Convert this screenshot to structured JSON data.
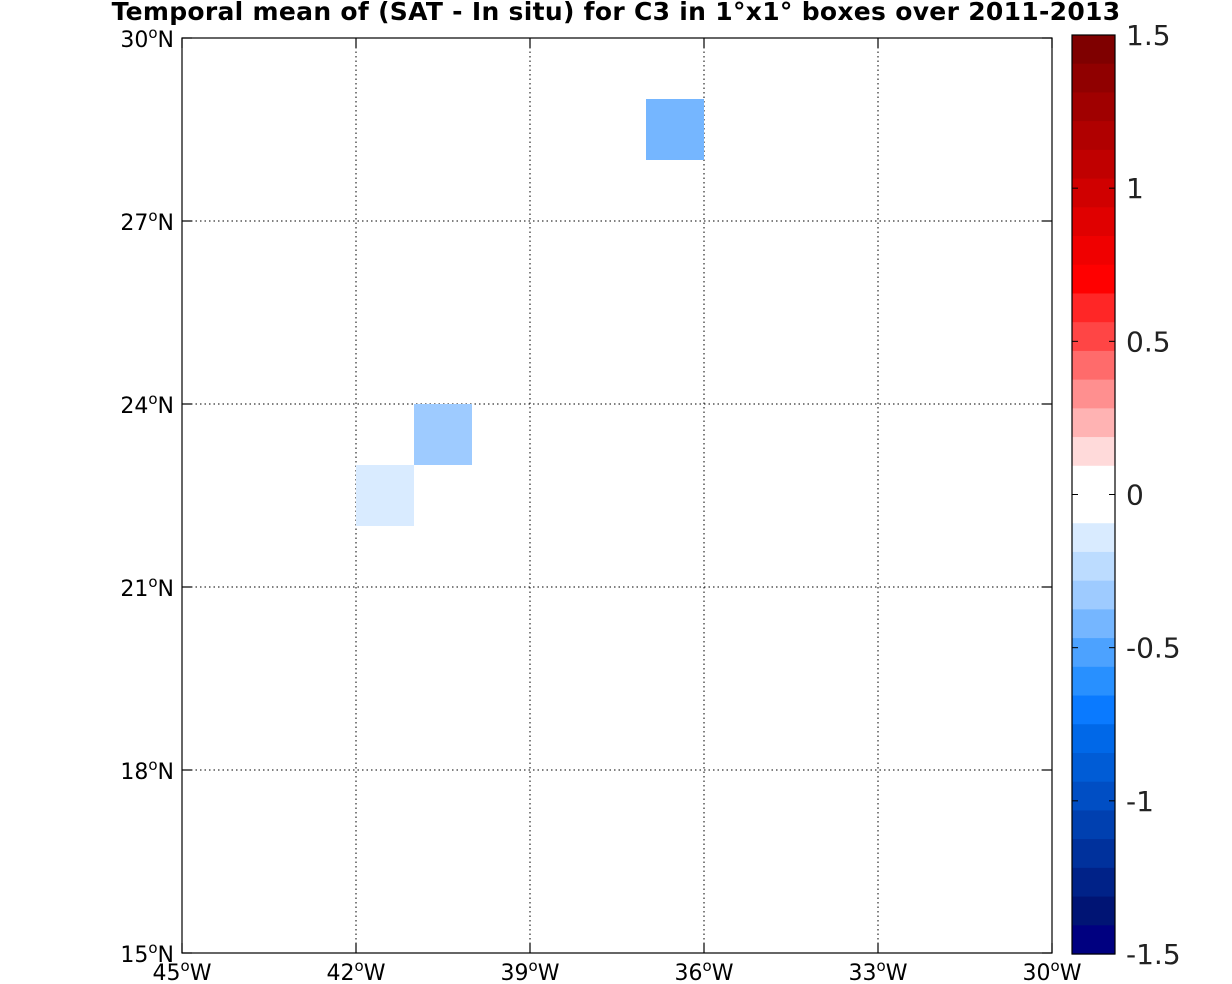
{
  "chart_data": {
    "type": "heatmap",
    "title": "Temporal mean of (SAT - In situ) for C3 in 1°x1° boxes over 2011-2013",
    "x_ticks": [
      {
        "value": -45,
        "deg": "45",
        "hemi": "W"
      },
      {
        "value": -42,
        "deg": "42",
        "hemi": "W"
      },
      {
        "value": -39,
        "deg": "39",
        "hemi": "W"
      },
      {
        "value": -36,
        "deg": "36",
        "hemi": "W"
      },
      {
        "value": -33,
        "deg": "33",
        "hemi": "W"
      },
      {
        "value": -30,
        "deg": "30",
        "hemi": "W"
      }
    ],
    "y_ticks": [
      {
        "value": 15,
        "deg": "15",
        "hemi": "N"
      },
      {
        "value": 18,
        "deg": "18",
        "hemi": "N"
      },
      {
        "value": 21,
        "deg": "21",
        "hemi": "N"
      },
      {
        "value": 24,
        "deg": "24",
        "hemi": "N"
      },
      {
        "value": 27,
        "deg": "27",
        "hemi": "N"
      },
      {
        "value": 30,
        "deg": "30",
        "hemi": "N"
      }
    ],
    "xlim": [
      -45,
      -30
    ],
    "ylim": [
      15,
      30
    ],
    "grid": true,
    "cells": [
      {
        "lon_min": -37,
        "lon_max": -36,
        "lat_min": 28,
        "lat_max": 29,
        "value": -0.45
      },
      {
        "lon_min": -41,
        "lon_max": -40,
        "lat_min": 23,
        "lat_max": 24,
        "value": -0.35
      },
      {
        "lon_min": -42,
        "lon_max": -41,
        "lat_min": 22,
        "lat_max": 23,
        "value": -0.1
      }
    ],
    "colorbar": {
      "range": [
        -1.5,
        1.5
      ],
      "ticks": [
        {
          "value": 1.5,
          "label": "1.5"
        },
        {
          "value": 1,
          "label": "1"
        },
        {
          "value": 0.5,
          "label": "0.5"
        },
        {
          "value": 0,
          "label": "0"
        },
        {
          "value": -0.5,
          "label": "-0.5"
        },
        {
          "value": -1,
          "label": "-1"
        },
        {
          "value": -1.5,
          "label": "-1.5"
        }
      ],
      "colors": [
        "#7f0000",
        "#900000",
        "#a00000",
        "#b00000",
        "#c00000",
        "#d00000",
        "#e00000",
        "#f00000",
        "#ff0000",
        "#ff2626",
        "#ff4545",
        "#ff6b6b",
        "#ff8f8f",
        "#ffb3b3",
        "#ffdada",
        "#ffffff",
        "#ffffff",
        "#d9ebff",
        "#bcdcff",
        "#9ecbff",
        "#75b6ff",
        "#4ca2ff",
        "#2890ff",
        "#0a7aff",
        "#0068e8",
        "#005cd6",
        "#004ec4",
        "#0040b0",
        "#00319c",
        "#002288",
        "#001474",
        "#000080"
      ]
    }
  }
}
